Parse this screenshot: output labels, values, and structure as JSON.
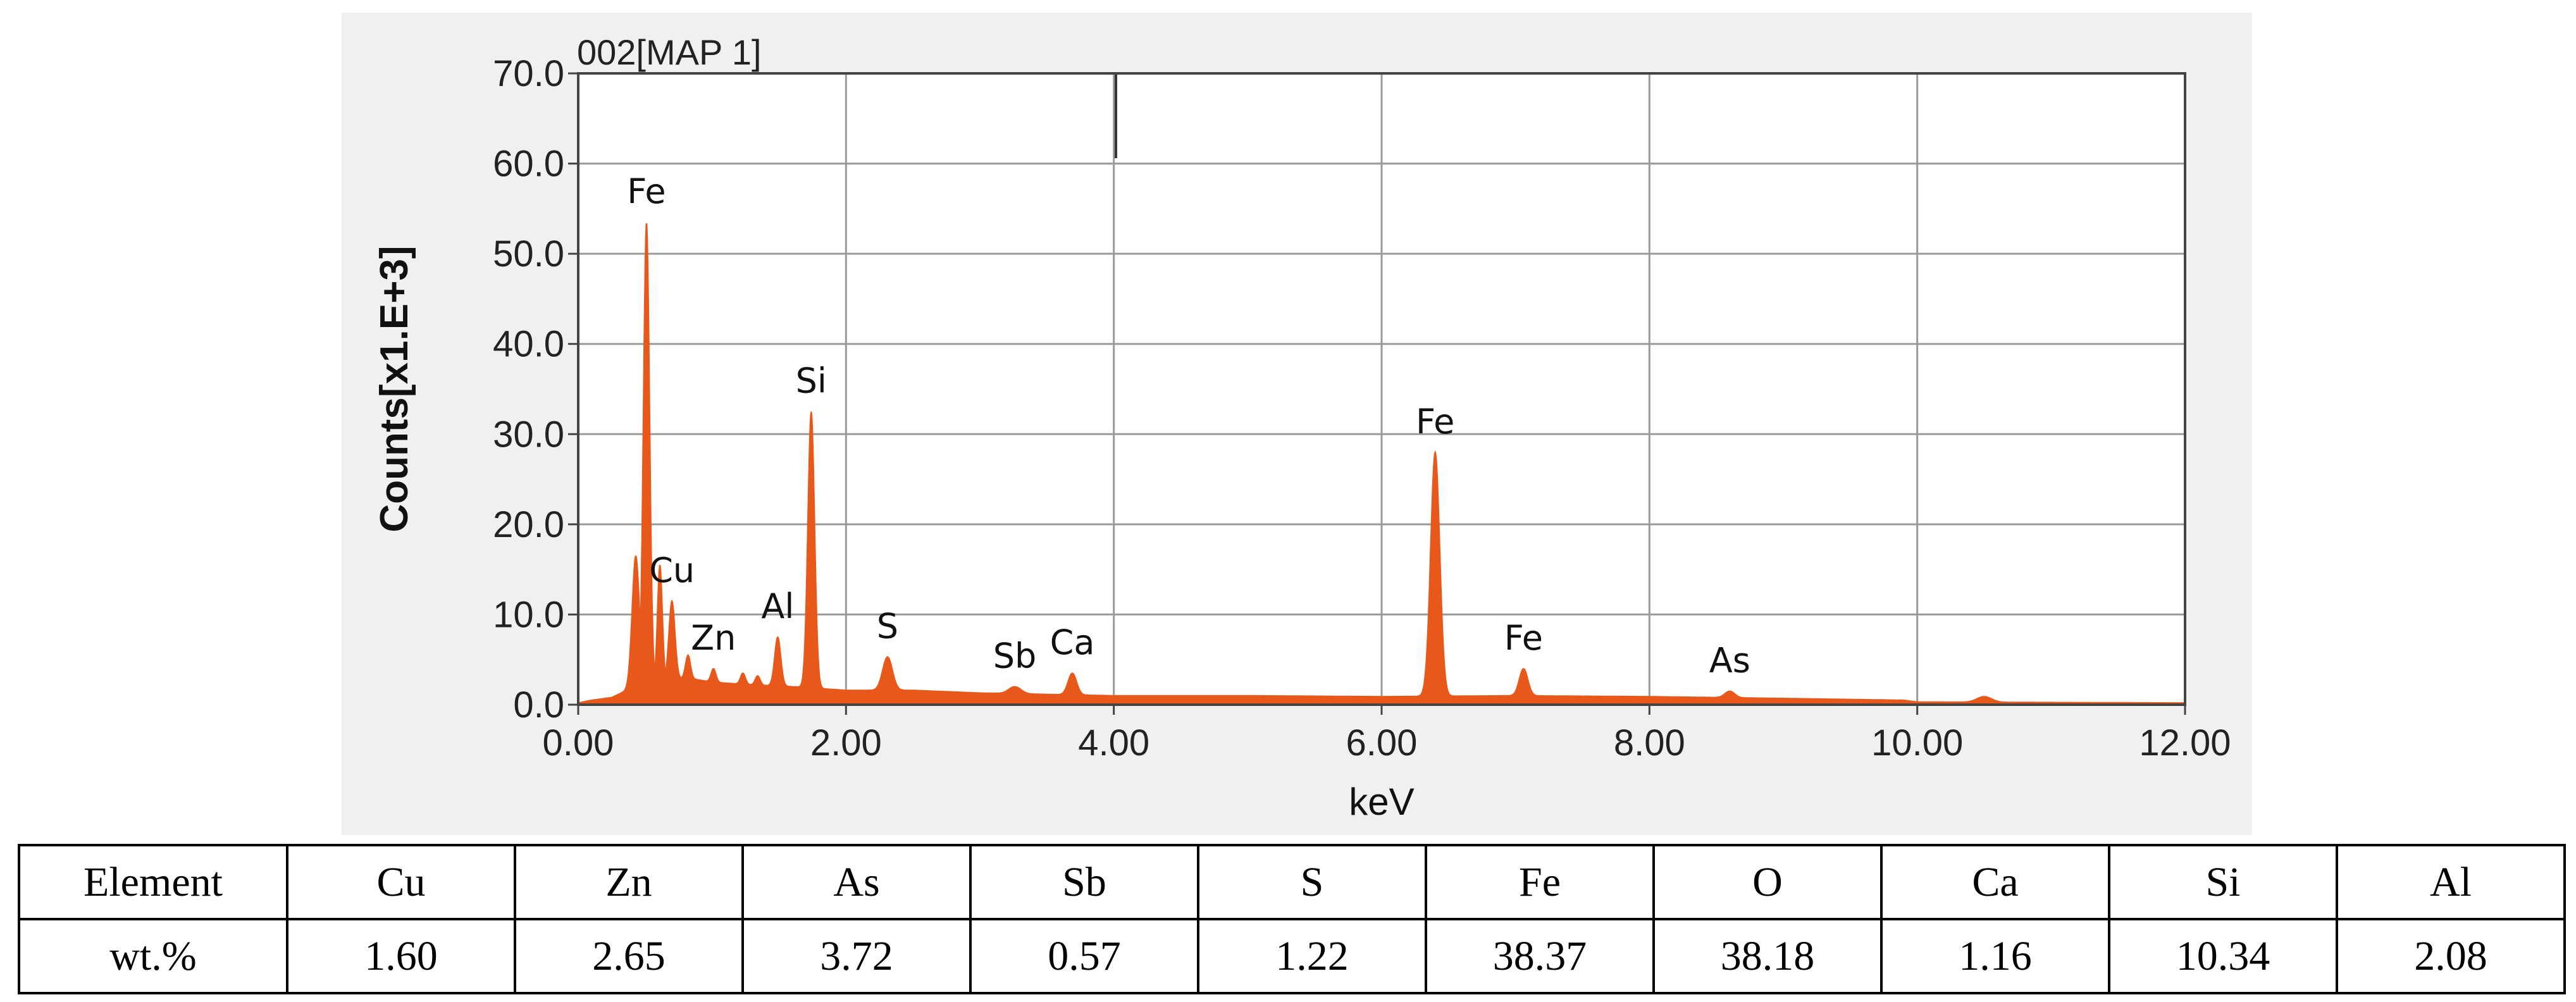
{
  "chart_data": {
    "type": "line",
    "title": "002[MAP 1]",
    "xlabel": "keV",
    "ylabel": "Counts[x1.E+3]",
    "xlim": [
      0,
      12
    ],
    "ylim": [
      0,
      70
    ],
    "x_ticks": [
      "0.00",
      "2.00",
      "4.00",
      "6.00",
      "8.00",
      "10.00",
      "12.00"
    ],
    "y_ticks": [
      "0.0",
      "10.0",
      "20.0",
      "30.0",
      "40.0",
      "50.0",
      "60.0",
      "70.0"
    ],
    "grid": true,
    "series_color": "#e8581a",
    "baseline": [
      {
        "x": 0.0,
        "y": 0.2
      },
      {
        "x": 0.1,
        "y": 0.5
      },
      {
        "x": 0.25,
        "y": 0.8
      },
      {
        "x": 0.35,
        "y": 1.5
      },
      {
        "x": 0.5,
        "y": 2.0
      },
      {
        "x": 0.8,
        "y": 3.0
      },
      {
        "x": 1.0,
        "y": 2.5
      },
      {
        "x": 1.3,
        "y": 2.2
      },
      {
        "x": 1.6,
        "y": 2.0
      },
      {
        "x": 2.0,
        "y": 1.6
      },
      {
        "x": 2.5,
        "y": 1.6
      },
      {
        "x": 3.0,
        "y": 1.3
      },
      {
        "x": 4.0,
        "y": 1.0
      },
      {
        "x": 5.0,
        "y": 1.0
      },
      {
        "x": 6.0,
        "y": 0.9
      },
      {
        "x": 7.0,
        "y": 1.0
      },
      {
        "x": 8.0,
        "y": 0.9
      },
      {
        "x": 9.0,
        "y": 0.7
      },
      {
        "x": 9.9,
        "y": 0.5
      },
      {
        "x": 10.0,
        "y": 0.3
      },
      {
        "x": 11.0,
        "y": 0.25
      },
      {
        "x": 12.0,
        "y": 0.2
      }
    ],
    "peaks": [
      {
        "label": "",
        "x": 0.43,
        "y": 16.5,
        "width": 0.06
      },
      {
        "label": "Fe",
        "x": 0.51,
        "y": 53.5,
        "width": 0.05
      },
      {
        "label": "",
        "x": 0.61,
        "y": 15.5,
        "width": 0.04
      },
      {
        "label": "Cu",
        "x": 0.7,
        "y": 11.5,
        "width": 0.05
      },
      {
        "label": "",
        "x": 0.82,
        "y": 5.5,
        "width": 0.04
      },
      {
        "label": "Zn",
        "x": 1.01,
        "y": 4.0,
        "width": 0.04
      },
      {
        "label": "",
        "x": 1.23,
        "y": 3.5,
        "width": 0.04
      },
      {
        "label": "",
        "x": 1.34,
        "y": 3.2,
        "width": 0.04
      },
      {
        "label": "Al",
        "x": 1.49,
        "y": 7.5,
        "width": 0.05
      },
      {
        "label": "Si",
        "x": 1.74,
        "y": 32.5,
        "width": 0.055
      },
      {
        "label": "S",
        "x": 2.31,
        "y": 5.3,
        "width": 0.08
      },
      {
        "label": "Sb",
        "x": 3.26,
        "y": 2.0,
        "width": 0.1
      },
      {
        "label": "Ca",
        "x": 3.69,
        "y": 3.5,
        "width": 0.07
      },
      {
        "label": "Fe",
        "x": 6.4,
        "y": 28.0,
        "width": 0.075
      },
      {
        "label": "Fe",
        "x": 7.06,
        "y": 4.0,
        "width": 0.07
      },
      {
        "label": "As",
        "x": 8.6,
        "y": 1.5,
        "width": 0.08
      },
      {
        "label": "",
        "x": 10.5,
        "y": 0.9,
        "width": 0.12
      }
    ]
  },
  "table": {
    "header": [
      "Element",
      "Cu",
      "Zn",
      "As",
      "Sb",
      "S",
      "Fe",
      "O",
      "Ca",
      "Si",
      "Al"
    ],
    "values": [
      "wt.%",
      "1.60",
      "2.65",
      "3.72",
      "0.57",
      "1.22",
      "38.37",
      "38.18",
      "1.16",
      "10.34",
      "2.08"
    ]
  }
}
